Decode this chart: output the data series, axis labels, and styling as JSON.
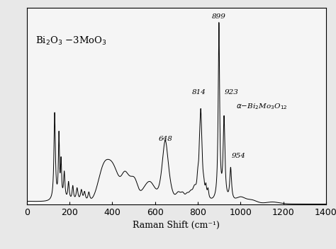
{
  "xlabel": "Raman Shift (cm⁻¹)",
  "xlim": [
    0,
    1400
  ],
  "ylim": [
    0,
    1.05
  ],
  "xticks": [
    0,
    200,
    400,
    600,
    800,
    1000,
    1200,
    1400
  ],
  "background_color": "#f0f0f0",
  "line_color": "#000000",
  "label_bi2o3": "Bi$_2$O$_3$ $-$3MoO$_3$",
  "label_alpha": "$\\alpha$$-$Bi$_2$Mo$_3$O$_{12}$",
  "peak_labels": [
    "899",
    "814",
    "923",
    "648",
    "954"
  ]
}
